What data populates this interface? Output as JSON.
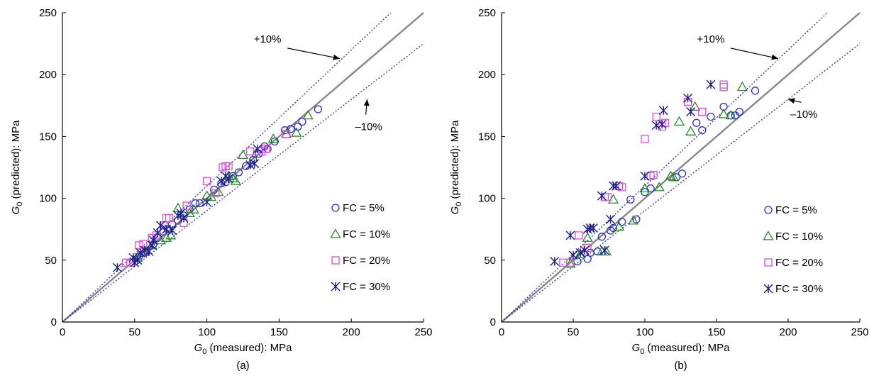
{
  "chart_data": [
    {
      "type": "scatter",
      "panel_label": "(a)",
      "xlabel": {
        "symbol": "G",
        "sub": "0",
        "rest": " (measured): MPa"
      },
      "ylabel": {
        "symbol": "G",
        "sub": "0",
        "rest": " (predicted): MPa"
      },
      "xlim": [
        0,
        250
      ],
      "ylim": [
        0,
        250
      ],
      "xticks": [
        0,
        50,
        100,
        150,
        200,
        250
      ],
      "yticks": [
        0,
        50,
        100,
        150,
        200,
        250
      ],
      "grid": false,
      "legend_position": "bottom-right",
      "reference_lines": [
        {
          "label": "",
          "slope": 1.0,
          "color": "#888888",
          "style": "solid"
        },
        {
          "label": "+10%",
          "slope": 1.1,
          "color": "#3a3ab0",
          "style": "dotted"
        },
        {
          "label": "–10%",
          "slope": 0.9,
          "color": "#3a3ab0",
          "style": "dotted"
        }
      ],
      "annotations": [
        {
          "text": "+10%",
          "tx": 142,
          "ty": 226,
          "ax": 192,
          "ay": 213
        },
        {
          "text": "–10%",
          "tx": 212,
          "ty": 155,
          "ax": 211,
          "ay": 180
        }
      ],
      "series": [
        {
          "name": "FC = 5%",
          "marker": "circle",
          "color": "#2b2bd9",
          "points": [
            [
              53,
              53
            ],
            [
              57,
              56
            ],
            [
              63,
              63
            ],
            [
              66,
              68
            ],
            [
              70,
              73
            ],
            [
              73,
              75
            ],
            [
              76,
              79
            ],
            [
              80,
              82
            ],
            [
              84,
              86
            ],
            [
              88,
              91
            ],
            [
              92,
              96
            ],
            [
              95,
              96
            ],
            [
              105,
              107
            ],
            [
              110,
              112
            ],
            [
              113,
              113
            ],
            [
              118,
              118
            ],
            [
              122,
              121
            ],
            [
              127,
              126
            ],
            [
              132,
              131
            ],
            [
              136,
              136
            ],
            [
              140,
              142
            ],
            [
              142,
              140
            ],
            [
              147,
              146
            ],
            [
              154,
              155
            ],
            [
              158,
              156
            ],
            [
              163,
              158
            ],
            [
              166,
              162
            ],
            [
              177,
              172
            ]
          ]
        },
        {
          "name": "FC = 10%",
          "marker": "triangle",
          "color": "#2a8a2a",
          "points": [
            [
              52,
              52
            ],
            [
              57,
              57
            ],
            [
              62,
              62
            ],
            [
              68,
              66
            ],
            [
              72,
              68
            ],
            [
              75,
              70
            ],
            [
              80,
              92
            ],
            [
              88,
              88
            ],
            [
              91,
              91
            ],
            [
              100,
              102
            ],
            [
              103,
              101
            ],
            [
              108,
              105
            ],
            [
              115,
              118
            ],
            [
              118,
              116
            ],
            [
              120,
              114
            ],
            [
              125,
              135
            ],
            [
              134,
              136
            ],
            [
              146,
              148
            ],
            [
              155,
              152
            ],
            [
              162,
              153
            ],
            [
              170,
              167
            ]
          ]
        },
        {
          "name": "FC = 20%",
          "marker": "square",
          "color": "#e24ae0",
          "points": [
            [
              44,
              48
            ],
            [
              47,
              48
            ],
            [
              53,
              62
            ],
            [
              56,
              63
            ],
            [
              58,
              58
            ],
            [
              62,
              68
            ],
            [
              65,
              70
            ],
            [
              70,
              78
            ],
            [
              72,
              84
            ],
            [
              74,
              84
            ],
            [
              84,
              80
            ],
            [
              86,
              94
            ],
            [
              100,
              114
            ],
            [
              106,
              104
            ],
            [
              111,
              125
            ],
            [
              113,
              126
            ],
            [
              115,
              126
            ],
            [
              130,
              138
            ],
            [
              138,
              138
            ],
            [
              141,
              140
            ],
            [
              155,
              152
            ]
          ]
        },
        {
          "name": "FC = 30%",
          "marker": "asterisk",
          "color": "#1c1c8c",
          "points": [
            [
              38,
              44
            ],
            [
              49,
              52
            ],
            [
              50,
              48
            ],
            [
              52,
              50
            ],
            [
              54,
              56
            ],
            [
              57,
              58
            ],
            [
              60,
              57
            ],
            [
              62,
              62
            ],
            [
              63,
              66
            ],
            [
              66,
              72
            ],
            [
              68,
              78
            ],
            [
              72,
              75
            ],
            [
              76,
              74
            ],
            [
              80,
              86
            ],
            [
              82,
              88
            ],
            [
              84,
              84
            ],
            [
              100,
              97
            ],
            [
              110,
              114
            ],
            [
              113,
              118
            ],
            [
              115,
              116
            ],
            [
              130,
              127
            ],
            [
              133,
              128
            ],
            [
              135,
              140
            ]
          ]
        }
      ]
    },
    {
      "type": "scatter",
      "panel_label": "(b)",
      "xlabel": {
        "symbol": "G",
        "sub": "0",
        "rest": " (measured): MPa"
      },
      "ylabel": {
        "symbol": "G",
        "sub": "0",
        "rest": " (predicted): MPa"
      },
      "xlim": [
        0,
        250
      ],
      "ylim": [
        0,
        250
      ],
      "xticks": [
        0,
        50,
        100,
        150,
        200,
        250
      ],
      "yticks": [
        0,
        50,
        100,
        150,
        200,
        250
      ],
      "grid": false,
      "legend_position": "bottom-right",
      "reference_lines": [
        {
          "label": "",
          "slope": 1.0,
          "color": "#888888",
          "style": "solid"
        },
        {
          "label": "+10%",
          "slope": 1.1,
          "color": "#3a3ab0",
          "style": "dotted"
        },
        {
          "label": "–10%",
          "slope": 0.9,
          "color": "#3a3ab0",
          "style": "dotted"
        }
      ],
      "annotations": [
        {
          "text": "+10%",
          "tx": 146,
          "ty": 226,
          "ax": 193,
          "ay": 213
        },
        {
          "text": "–10%",
          "tx": 211,
          "ty": 165,
          "ax": 200,
          "ay": 180
        }
      ],
      "series": [
        {
          "name": "FC = 5%",
          "marker": "circle",
          "color": "#2b2bd9",
          "points": [
            [
              53,
              49
            ],
            [
              60,
              51
            ],
            [
              62,
              56
            ],
            [
              67,
              57
            ],
            [
              70,
              69
            ],
            [
              76,
              74
            ],
            [
              78,
              76
            ],
            [
              84,
              81
            ],
            [
              90,
              99
            ],
            [
              94,
              83
            ],
            [
              100,
              105
            ],
            [
              104,
              108
            ],
            [
              122,
              117
            ],
            [
              126,
              120
            ],
            [
              136,
              161
            ],
            [
              140,
              155
            ],
            [
              146,
              166
            ],
            [
              155,
              174
            ],
            [
              160,
              167
            ],
            [
              163,
              167
            ],
            [
              166,
              170
            ],
            [
              177,
              187
            ]
          ]
        },
        {
          "name": "FC = 10%",
          "marker": "triangle",
          "color": "#2a8a2a",
          "points": [
            [
              48,
              47
            ],
            [
              55,
              55
            ],
            [
              60,
              68
            ],
            [
              70,
              57
            ],
            [
              73,
              57
            ],
            [
              78,
              99
            ],
            [
              82,
              77
            ],
            [
              92,
              82
            ],
            [
              100,
              108
            ],
            [
              110,
              109
            ],
            [
              118,
              118
            ],
            [
              120,
              117
            ],
            [
              124,
              162
            ],
            [
              132,
              154
            ],
            [
              135,
              174
            ],
            [
              155,
              168
            ],
            [
              160,
              167
            ],
            [
              168,
              190
            ]
          ]
        },
        {
          "name": "FC = 20%",
          "marker": "square",
          "color": "#e24ae0",
          "points": [
            [
              43,
              48
            ],
            [
              48,
              48
            ],
            [
              54,
              70
            ],
            [
              60,
              60
            ],
            [
              72,
              101
            ],
            [
              74,
              101
            ],
            [
              82,
              110
            ],
            [
              84,
              109
            ],
            [
              100,
              148
            ],
            [
              104,
              118
            ],
            [
              106,
              119
            ],
            [
              108,
              166
            ],
            [
              112,
              158
            ],
            [
              114,
              161
            ],
            [
              130,
              178
            ],
            [
              140,
              170
            ],
            [
              155,
              190
            ],
            [
              155,
              192
            ]
          ]
        },
        {
          "name": "FC = 30%",
          "marker": "asterisk",
          "color": "#1c1c8c",
          "points": [
            [
              37,
              49
            ],
            [
              48,
              70
            ],
            [
              50,
              54
            ],
            [
              55,
              56
            ],
            [
              58,
              58
            ],
            [
              60,
              75
            ],
            [
              62,
              76
            ],
            [
              64,
              76
            ],
            [
              70,
              102
            ],
            [
              72,
              58
            ],
            [
              76,
              83
            ],
            [
              78,
              110
            ],
            [
              80,
              110
            ],
            [
              100,
              118
            ],
            [
              108,
              159
            ],
            [
              112,
              160
            ],
            [
              113,
              171
            ],
            [
              130,
              181
            ],
            [
              132,
              170
            ],
            [
              146,
              192
            ]
          ]
        }
      ]
    }
  ]
}
